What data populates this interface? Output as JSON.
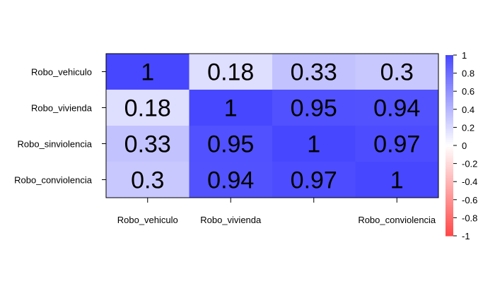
{
  "chart_data": {
    "type": "heatmap",
    "title": "",
    "row_labels": [
      "Robo_vehiculo",
      "Robo_vivienda",
      "Robo_sinviolencia",
      "Robo_conviolencia"
    ],
    "column_labels": [
      "Robo_vehiculo",
      "Robo_vivienda",
      "",
      "Robo_conviolencia"
    ],
    "values": [
      [
        1,
        0.18,
        0.33,
        0.3
      ],
      [
        0.18,
        1,
        0.95,
        0.94
      ],
      [
        0.33,
        0.95,
        1,
        0.97
      ],
      [
        0.3,
        0.94,
        0.97,
        1
      ]
    ],
    "display_values": [
      [
        "1",
        "0.18",
        "0.33",
        "0.3"
      ],
      [
        "0.18",
        "1",
        "0.95",
        "0.94"
      ],
      [
        "0.33",
        "0.95",
        "1",
        "0.97"
      ],
      [
        "0.3",
        "0.94",
        "0.97",
        "1"
      ]
    ],
    "color_scale": {
      "min": -1,
      "max": 1,
      "low_color": "#FF0000",
      "mid_color": "#FFFFFF",
      "high_color": "#0000FF",
      "ticks": [
        "1",
        "0.8",
        "0.6",
        "0.4",
        "0.2",
        "0",
        "-0.2",
        "-0.4",
        "-0.6",
        "-0.8",
        "-1"
      ],
      "legend_position": "right"
    }
  }
}
